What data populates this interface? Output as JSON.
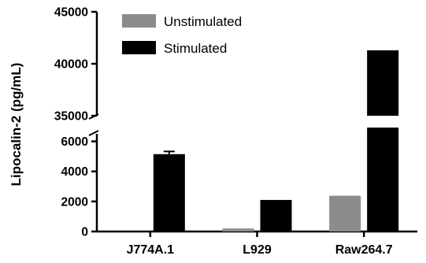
{
  "chart_data": {
    "type": "bar",
    "title": "",
    "xlabel": "",
    "ylabel": "Lipocalin-2 (pg/mL)",
    "categories": [
      "J774A.1",
      "L929",
      "Raw264.7"
    ],
    "series": [
      {
        "name": "Unstimulated",
        "values": [
          0,
          200,
          2380
        ],
        "errors": [
          0,
          0,
          0
        ],
        "color": "#8c8c8c"
      },
      {
        "name": "Stimulated",
        "values": [
          5150,
          2100,
          41300
        ],
        "errors": [
          180,
          0,
          0
        ],
        "color": "#000000"
      }
    ],
    "axis_break": true,
    "ylim_lower": [
      0,
      6500
    ],
    "ylim_upper": [
      35000,
      45000
    ],
    "yticks_lower": [
      "0",
      "2000",
      "4000",
      "6000"
    ],
    "yticks_upper": [
      "35000",
      "40000",
      "45000"
    ],
    "legend_position": "top-left",
    "grid": false
  }
}
